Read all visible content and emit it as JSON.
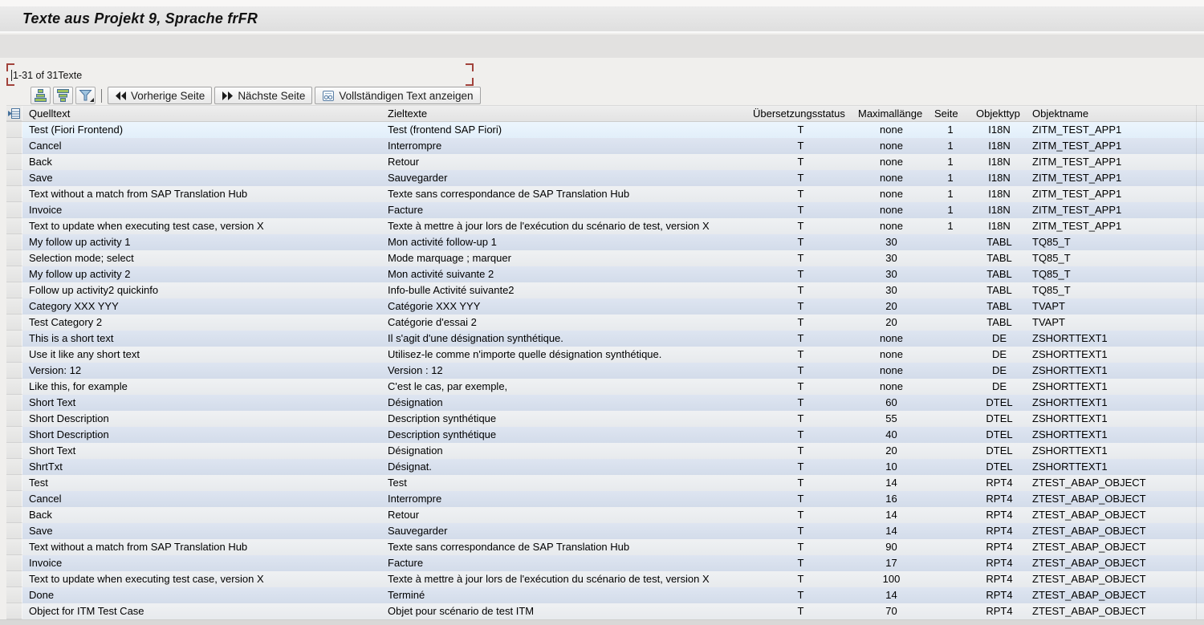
{
  "title": "Texte aus Projekt 9, Sprache frFR",
  "status": {
    "range_text": "1-31 of 31Texte"
  },
  "toolbar": {
    "icon_buttons": [
      {
        "name": "sort-ascending"
      },
      {
        "name": "sort-descending"
      },
      {
        "name": "filter"
      }
    ],
    "buttons": [
      {
        "label": "Vorherige Seite",
        "icon": "double-arrow-left"
      },
      {
        "label": "Nächste Seite",
        "icon": "double-arrow-right"
      },
      {
        "label": "Vollständigen Text anzeigen",
        "icon": "display-long-text"
      }
    ]
  },
  "table": {
    "columns": [
      "Quelltext",
      "Zieltexte",
      "Übersetzungsstatus",
      "Maximallänge",
      "Seite",
      "Objekttyp",
      "Objektname"
    ],
    "selected_row_index": 0,
    "rows": [
      [
        "Test (Fiori Frontend)",
        "Test (frontend SAP Fiori)",
        "T",
        "none",
        "1",
        "I18N",
        "ZITM_TEST_APP1"
      ],
      [
        "Cancel",
        "Interrompre",
        "T",
        "none",
        "1",
        "I18N",
        "ZITM_TEST_APP1"
      ],
      [
        "Back",
        "Retour",
        "T",
        "none",
        "1",
        "I18N",
        "ZITM_TEST_APP1"
      ],
      [
        "Save",
        "Sauvegarder",
        "T",
        "none",
        "1",
        "I18N",
        "ZITM_TEST_APP1"
      ],
      [
        "Text without a match from SAP Translation Hub",
        "Texte sans correspondance de SAP Translation Hub",
        "T",
        "none",
        "1",
        "I18N",
        "ZITM_TEST_APP1"
      ],
      [
        "Invoice",
        "Facture",
        "T",
        "none",
        "1",
        "I18N",
        "ZITM_TEST_APP1"
      ],
      [
        "Text to update when executing test case, version X",
        "Texte à mettre à jour lors de l'exécution du scénario de test, version X",
        "T",
        "none",
        "1",
        "I18N",
        "ZITM_TEST_APP1"
      ],
      [
        "My follow up activity 1",
        "Mon activité follow-up 1",
        "T",
        "30",
        "",
        "TABL",
        "TQ85_T"
      ],
      [
        "Selection mode; select",
        "Mode marquage ; marquer",
        "T",
        "30",
        "",
        "TABL",
        "TQ85_T"
      ],
      [
        "My follow up activity 2",
        "Mon activité suivante 2",
        "T",
        "30",
        "",
        "TABL",
        "TQ85_T"
      ],
      [
        "Follow up activity2 quickinfo",
        "Info-bulle Activité suivante2",
        "T",
        "30",
        "",
        "TABL",
        "TQ85_T"
      ],
      [
        "Category XXX YYY",
        "Catégorie XXX YYY",
        "T",
        "20",
        "",
        "TABL",
        "TVAPT"
      ],
      [
        "Test Category 2",
        "Catégorie d'essai 2",
        "T",
        "20",
        "",
        "TABL",
        "TVAPT"
      ],
      [
        "This is a short text",
        "Il s'agit d'une désignation synthétique.",
        "T",
        "none",
        "",
        "DE",
        "ZSHORTTEXT1"
      ],
      [
        "Use it like any short text",
        "Utilisez-le comme n'importe quelle désignation synthétique.",
        "T",
        "none",
        "",
        "DE",
        "ZSHORTTEXT1"
      ],
      [
        "Version: 12",
        "Version : 12",
        "T",
        "none",
        "",
        "DE",
        "ZSHORTTEXT1"
      ],
      [
        "Like this, for example",
        "C'est le cas, par exemple,",
        "T",
        "none",
        "",
        "DE",
        "ZSHORTTEXT1"
      ],
      [
        "Short Text",
        "Désignation",
        "T",
        "60",
        "",
        "DTEL",
        "ZSHORTTEXT1"
      ],
      [
        "Short Description",
        "Description synthétique",
        "T",
        "55",
        "",
        "DTEL",
        "ZSHORTTEXT1"
      ],
      [
        "Short Description",
        "Description synthétique",
        "T",
        "40",
        "",
        "DTEL",
        "ZSHORTTEXT1"
      ],
      [
        "Short Text",
        "Désignation",
        "T",
        "20",
        "",
        "DTEL",
        "ZSHORTTEXT1"
      ],
      [
        "ShrtTxt",
        "Désignat.",
        "T",
        "10",
        "",
        "DTEL",
        "ZSHORTTEXT1"
      ],
      [
        "Test",
        "Test",
        "T",
        "14",
        "",
        "RPT4",
        "ZTEST_ABAP_OBJECT"
      ],
      [
        "Cancel",
        "Interrompre",
        "T",
        "16",
        "",
        "RPT4",
        "ZTEST_ABAP_OBJECT"
      ],
      [
        "Back",
        "Retour",
        "T",
        "14",
        "",
        "RPT4",
        "ZTEST_ABAP_OBJECT"
      ],
      [
        "Save",
        "Sauvegarder",
        "T",
        "14",
        "",
        "RPT4",
        "ZTEST_ABAP_OBJECT"
      ],
      [
        "Text without a match from SAP Translation Hub",
        "Texte sans correspondance de SAP Translation Hub",
        "T",
        "90",
        "",
        "RPT4",
        "ZTEST_ABAP_OBJECT"
      ],
      [
        "Invoice",
        "Facture",
        "T",
        "17",
        "",
        "RPT4",
        "ZTEST_ABAP_OBJECT"
      ],
      [
        "Text to update when executing test case, version X",
        "Texte à mettre à jour lors de l'exécution du scénario de test, version X",
        "T",
        "100",
        "",
        "RPT4",
        "ZTEST_ABAP_OBJECT"
      ],
      [
        "Done",
        "Terminé",
        "T",
        "14",
        "",
        "RPT4",
        "ZTEST_ABAP_OBJECT"
      ],
      [
        "Object for ITM Test Case",
        "Objet pour scénario de test ITM",
        "T",
        "70",
        "",
        "RPT4",
        "ZTEST_ABAP_OBJECT"
      ]
    ]
  },
  "colors": {
    "row_light": "#e9ebee",
    "row_blue": "#d6ddeb",
    "row_selected": "#e7f1fa",
    "header_bg": "#e8e8e8",
    "selection_bracket": "#a2423b",
    "icon_green": "#9dc05c",
    "icon_blue_outline": "#46719c"
  }
}
